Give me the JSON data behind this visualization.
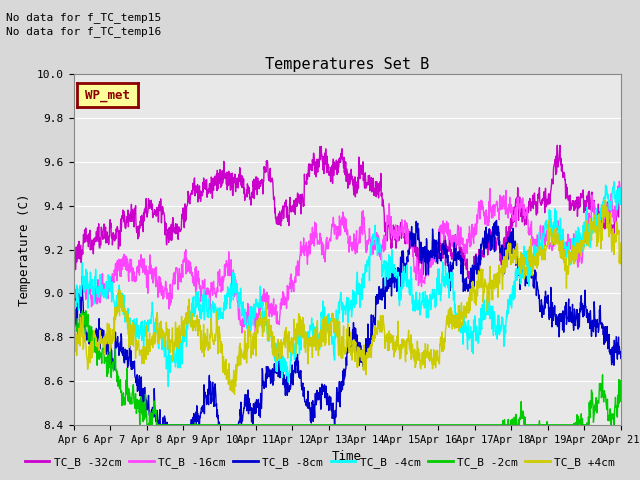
{
  "title": "Temperatures Set B",
  "xlabel": "Time",
  "ylabel": "Temperature (C)",
  "ylim": [
    8.4,
    10.0
  ],
  "background_color": "#e8e8e8",
  "grid_color": "#ffffff",
  "annotations": [
    "No data for f_TC_temp15",
    "No data for f_TC_temp16"
  ],
  "wp_met_label": "WP_met",
  "wp_met_color": "#ffff99",
  "wp_met_text_color": "#8b0000",
  "series": [
    {
      "label": "TC_B -32cm",
      "color": "#cc00cc",
      "lw": 1.0
    },
    {
      "label": "TC_B -16cm",
      "color": "#ff44ff",
      "lw": 1.0
    },
    {
      "label": "TC_B -8cm",
      "color": "#0000cc",
      "lw": 1.0
    },
    {
      "label": "TC_B -4cm",
      "color": "#00ffff",
      "lw": 1.0
    },
    {
      "label": "TC_B -2cm",
      "color": "#00cc00",
      "lw": 1.0
    },
    {
      "label": "TC_B +4cm",
      "color": "#cccc00",
      "lw": 1.0
    }
  ],
  "yticks": [
    8.4,
    8.6,
    8.8,
    9.0,
    9.2,
    9.4,
    9.6,
    9.8,
    10.0
  ],
  "xtick_labels": [
    "Apr 6",
    "Apr 7",
    "Apr 8",
    "Apr 9",
    "Apr 10",
    "Apr 11",
    "Apr 12",
    "Apr 13",
    "Apr 14",
    "Apr 15",
    "Apr 16",
    "Apr 17",
    "Apr 18",
    "Apr 19",
    "Apr 20",
    "Apr 21"
  ],
  "seed": 42,
  "n_days": 15,
  "pts_per_day": 96
}
